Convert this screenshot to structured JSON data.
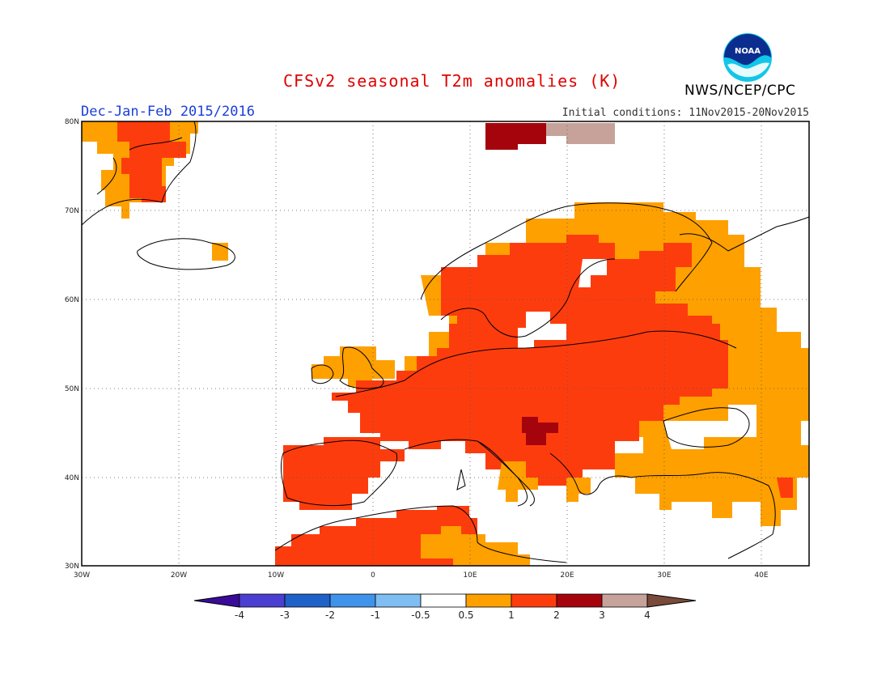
{
  "title": "CFSv2 seasonal T2m anomalies (K)",
  "season": "Dec-Jan-Feb 2015/2016",
  "initial_conditions": "Initial conditions: 11Nov2015-20Nov2015",
  "organization": "NWS/NCEP/CPC",
  "logo_text": "NOAA",
  "map": {
    "lon_range": [
      -30,
      45
    ],
    "lat_range": [
      30,
      80
    ],
    "lat_labels": [
      "30N",
      "40N",
      "50N",
      "60N",
      "70N",
      "80N"
    ],
    "lon_labels": [
      "30W",
      "20W",
      "10W",
      "0",
      "10E",
      "20E",
      "30E",
      "40E"
    ]
  },
  "legend": {
    "colors": [
      "#3a0b98",
      "#4b3fd1",
      "#1e62c8",
      "#3f93ea",
      "#7fbef2",
      "#ffffff",
      "#fea000",
      "#fd3c0e",
      "#a6040c",
      "#c7a29a",
      "#7a4a3a"
    ],
    "labels": [
      "-4",
      "-3",
      "-2",
      "-1",
      "-0.5",
      "0.5",
      "1",
      "2",
      "3",
      "4"
    ]
  }
}
